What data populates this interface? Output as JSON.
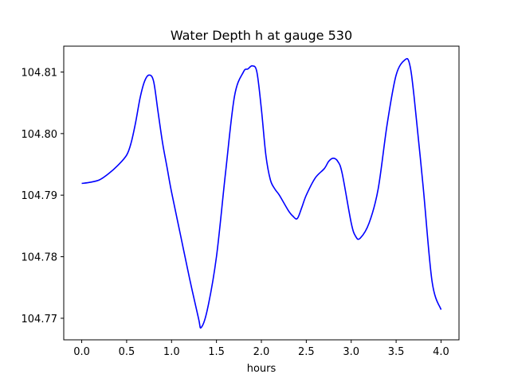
{
  "chart_data": {
    "type": "line",
    "title": "Water Depth h at gauge 530",
    "xlabel": "hours",
    "ylabel": "",
    "xlim": [
      -0.2,
      4.2
    ],
    "ylim": [
      104.7665,
      104.8142
    ],
    "grid": false,
    "legend": "none",
    "line_color": "#0000ff",
    "xticks": [
      {
        "value": 0.0,
        "label": "0.0"
      },
      {
        "value": 0.5,
        "label": "0.5"
      },
      {
        "value": 1.0,
        "label": "1.0"
      },
      {
        "value": 1.5,
        "label": "1.5"
      },
      {
        "value": 2.0,
        "label": "2.0"
      },
      {
        "value": 2.5,
        "label": "2.5"
      },
      {
        "value": 3.0,
        "label": "3.0"
      },
      {
        "value": 3.5,
        "label": "3.5"
      },
      {
        "value": 4.0,
        "label": "4.0"
      }
    ],
    "yticks": [
      {
        "value": 104.77,
        "label": "104.77"
      },
      {
        "value": 104.78,
        "label": "104.78"
      },
      {
        "value": 104.79,
        "label": "104.79"
      },
      {
        "value": 104.8,
        "label": "104.80"
      },
      {
        "value": 104.81,
        "label": "104.81"
      }
    ],
    "series": [
      {
        "x": [
          0.0,
          0.1,
          0.2,
          0.3,
          0.4,
          0.5,
          0.55,
          0.6,
          0.65,
          0.7,
          0.75,
          0.8,
          0.85,
          0.9,
          0.95,
          1.0,
          1.1,
          1.2,
          1.3,
          1.33,
          1.4,
          1.5,
          1.6,
          1.7,
          1.8,
          1.85,
          1.9,
          1.95,
          2.0,
          2.05,
          2.1,
          2.15,
          2.2,
          2.3,
          2.35,
          2.4,
          2.45,
          2.5,
          2.6,
          2.7,
          2.75,
          2.8,
          2.85,
          2.9,
          3.0,
          3.05,
          3.1,
          3.2,
          3.3,
          3.4,
          3.5,
          3.6,
          3.65,
          3.7,
          3.8,
          3.9,
          4.0
        ],
        "y": [
          104.7919,
          104.7921,
          104.7925,
          104.7935,
          104.7948,
          104.7965,
          104.7985,
          104.8018,
          104.8058,
          104.8085,
          104.8095,
          104.8085,
          104.8035,
          104.7985,
          104.7945,
          104.7905,
          104.7835,
          104.7765,
          104.77,
          104.7685,
          104.7715,
          104.78,
          104.7935,
          104.806,
          104.81,
          104.8105,
          104.811,
          104.81,
          104.804,
          104.7965,
          104.7925,
          104.791,
          104.79,
          104.7875,
          104.7866,
          104.7862,
          104.788,
          104.79,
          104.7928,
          104.7943,
          104.7955,
          104.796,
          104.7955,
          104.7935,
          104.7855,
          104.7833,
          104.783,
          104.7855,
          104.791,
          104.8015,
          104.8095,
          104.812,
          104.8113,
          104.806,
          104.7915,
          104.776,
          104.7714
        ]
      }
    ]
  }
}
